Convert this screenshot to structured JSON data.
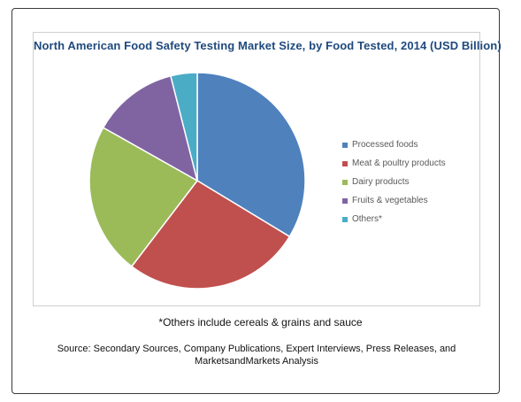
{
  "chart_data": {
    "type": "pie",
    "title": "North American Food Safety Testing Market Size, by Food Tested, 2014 (USD Billion)",
    "categories": [
      "Processed foods",
      "Meat & poultry products",
      "Dairy products",
      "Fruits & vegetables",
      "Others*"
    ],
    "values": [
      34,
      27,
      23,
      13,
      4
    ],
    "colors": [
      "#4f81bd",
      "#c0504d",
      "#9bbb59",
      "#8064a2",
      "#4bacc6"
    ],
    "legend_position": "right"
  },
  "footnote": "*Others include cereals & grains and sauce",
  "source": "Source: Secondary Sources, Company Publications, Expert Interviews, Press Releases, and MarketsandMarkets Analysis"
}
